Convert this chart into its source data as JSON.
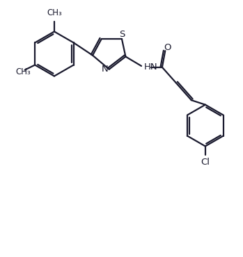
{
  "bg_color": "#ffffff",
  "line_color": "#1a1a2e",
  "text_color": "#1a1a2e",
  "line_width": 1.6,
  "font_size": 9.5,
  "figsize": [
    3.49,
    3.7
  ],
  "dpi": 100,
  "xlim": [
    0,
    9.5
  ],
  "ylim": [
    0,
    10.0
  ]
}
